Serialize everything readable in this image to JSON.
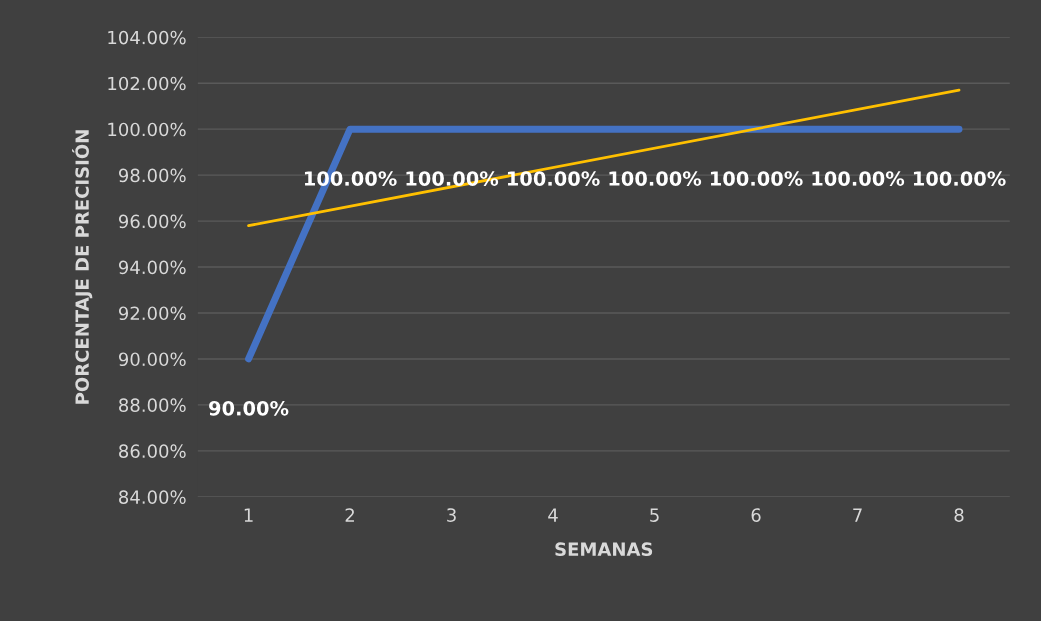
{
  "chart_data": {
    "type": "line",
    "xlabel": "SEMANAS",
    "ylabel": "PORCENTAJE DE PRECISIÓN",
    "xlim": [
      0.5,
      8.5
    ],
    "xticks": [
      1,
      2,
      3,
      4,
      5,
      6,
      7,
      8
    ],
    "ylim": [
      84,
      104
    ],
    "yticks": [
      {
        "value": 84,
        "label": "84.00%"
      },
      {
        "value": 86,
        "label": "86.00%"
      },
      {
        "value": 88,
        "label": "88.00%"
      },
      {
        "value": 90,
        "label": "90.00%"
      },
      {
        "value": 92,
        "label": "92.00%"
      },
      {
        "value": 94,
        "label": "94.00%"
      },
      {
        "value": 96,
        "label": "96.00%"
      },
      {
        "value": 98,
        "label": "98.00%"
      },
      {
        "value": 100,
        "label": "100.00%"
      },
      {
        "value": 102,
        "label": "102.00%"
      },
      {
        "value": 104,
        "label": "104.00%"
      }
    ],
    "grid": "y",
    "series": [
      {
        "color": "#4472c4",
        "x": [
          1,
          2,
          3,
          4,
          5,
          6,
          7,
          8
        ],
        "values": [
          90,
          100,
          100,
          100,
          100,
          100,
          100,
          100
        ],
        "value_labels": [
          "90.00%",
          "100.00%",
          "100.00%",
          "100.00%",
          "100.00%",
          "100.00%",
          "100.00%",
          "100.00%"
        ]
      },
      {
        "color": "#ffc000",
        "x": [
          1,
          8
        ],
        "values": [
          95.8,
          101.7
        ]
      }
    ]
  }
}
